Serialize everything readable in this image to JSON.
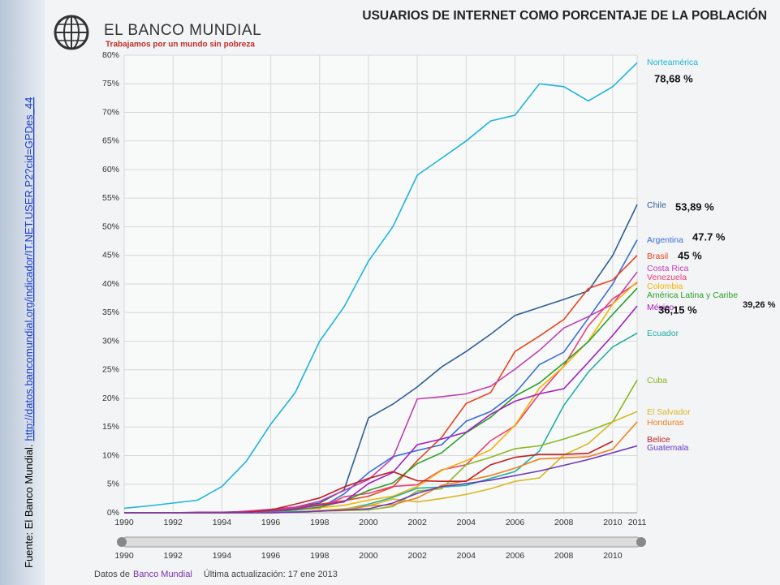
{
  "logo": {
    "name": "EL BANCO MUNDIAL",
    "tagline": "Trabajamos por un mundo sin pobreza"
  },
  "source": {
    "prefix": "Fuente: El Banco Mundial.",
    "url": "http://datos.bancomundial.org/indicador/IT.NET.USER.P2?cid=GPDes_44"
  },
  "footer": {
    "prefix": "Datos de",
    "brand": "Banco Mundial",
    "updated": "Última actualización: 17 ene 2013"
  },
  "chart_data": {
    "type": "line",
    "title": "USUARIOS DE INTERNET COMO PORCENTAJE DE LA POBLACIÓN",
    "x": [
      1990,
      1991,
      1992,
      1993,
      1994,
      1995,
      1996,
      1997,
      1998,
      1999,
      2000,
      2001,
      2002,
      2003,
      2004,
      2005,
      2006,
      2007,
      2008,
      2009,
      2010,
      2011
    ],
    "xlim": [
      1990,
      2011
    ],
    "xticks": [
      1990,
      1992,
      1994,
      1996,
      1998,
      2000,
      2002,
      2004,
      2006,
      2008,
      2010,
      2011
    ],
    "ylim": [
      0,
      80
    ],
    "yticks": [
      {
        "value": 0,
        "label": "0%"
      },
      {
        "value": 5,
        "label": "5%"
      },
      {
        "value": 10,
        "label": "10%"
      },
      {
        "value": 15,
        "label": "15%"
      },
      {
        "value": 20,
        "label": "20%"
      },
      {
        "value": 25,
        "label": "25%"
      },
      {
        "value": 30,
        "label": "30%"
      },
      {
        "value": 35,
        "label": "35%"
      },
      {
        "value": 40,
        "label": "40%"
      },
      {
        "value": 45,
        "label": "45%"
      },
      {
        "value": 50,
        "label": "50%"
      },
      {
        "value": 55,
        "label": "55%"
      },
      {
        "value": 60,
        "label": "60%"
      },
      {
        "value": 65,
        "label": "65%"
      },
      {
        "value": 70,
        "label": "70%"
      },
      {
        "value": 75,
        "label": "75%"
      },
      {
        "value": 80,
        "label": "80%"
      }
    ],
    "grid": true,
    "series": [
      {
        "name": "Norteamérica",
        "color": "#1fb5d9",
        "values": [
          0.8,
          1.2,
          1.7,
          2.2,
          4.6,
          9,
          15.5,
          21,
          30,
          36,
          44,
          50,
          59,
          62,
          65,
          68.5,
          69.5,
          75,
          74.5,
          72,
          74.5,
          78.68
        ]
      },
      {
        "name": "Chile",
        "color": "#2e5f95",
        "values": [
          0,
          0,
          0,
          0,
          0.1,
          0.2,
          0.6,
          1,
          1.7,
          4,
          16.6,
          19,
          22,
          25.5,
          28.2,
          31.2,
          34.5,
          35.9,
          37.3,
          38.8,
          45,
          53.89
        ]
      },
      {
        "name": "Argentina",
        "color": "#3a6fd8",
        "values": [
          0,
          0,
          0,
          0,
          0,
          0.1,
          0.3,
          0.6,
          0.8,
          3.3,
          7,
          9.8,
          10.9,
          11.9,
          16,
          17.7,
          20.9,
          25.9,
          28.1,
          34,
          40,
          47.7
        ]
      },
      {
        "name": "Brasil",
        "color": "#e8431e",
        "values": [
          0,
          0,
          0,
          0,
          0,
          0.1,
          0.4,
          0.8,
          1.5,
          2.1,
          2.9,
          4.5,
          9.1,
          13.2,
          19.1,
          21,
          28.2,
          30.9,
          33.8,
          39.2,
          40.7,
          45
        ]
      },
      {
        "name": "Costa Rica",
        "color": "#c040b0",
        "values": [
          0,
          0,
          0,
          0,
          0,
          0.3,
          0.6,
          1,
          2,
          3.9,
          5.8,
          9.6,
          19.9,
          20.3,
          20.8,
          22.1,
          25.1,
          28.4,
          32.3,
          34.3,
          36.5,
          42.1
        ]
      },
      {
        "name": "Venezuela",
        "color": "#e8407a",
        "values": [
          0,
          0,
          0,
          0,
          0,
          0.1,
          0.2,
          0.5,
          0.8,
          2.8,
          3.4,
          4.6,
          4.9,
          7.5,
          8.4,
          12.6,
          15.2,
          20.8,
          25.7,
          32.7,
          37.4,
          40.2
        ]
      },
      {
        "name": "Colombia",
        "color": "#f5b400",
        "values": [
          0,
          0,
          0,
          0,
          0,
          0.1,
          0.2,
          0.5,
          0.9,
          1.3,
          2.2,
          2.9,
          4.6,
          7.4,
          9.1,
          11,
          15.3,
          21.8,
          25.6,
          30,
          36.5,
          40.4
        ]
      },
      {
        "name": "América Latina y Caribe",
        "color": "#2aa02a",
        "values": [
          0,
          0,
          0,
          0,
          0,
          0.1,
          0.2,
          0.5,
          1,
          2,
          3.9,
          5.2,
          8.6,
          10.5,
          14,
          16.7,
          20.4,
          22.7,
          26.2,
          29.9,
          34.7,
          39.26
        ]
      },
      {
        "name": "México",
        "color": "#a020c0",
        "values": [
          0,
          0,
          0,
          0.1,
          0.1,
          0.1,
          0.2,
          0.7,
          1.3,
          1.9,
          5.1,
          7.04,
          11.9,
          12.9,
          14.1,
          17.2,
          19.5,
          20.8,
          21.7,
          26.3,
          31,
          36.15
        ]
      },
      {
        "name": "Ecuador",
        "color": "#20b0a0",
        "values": [
          0,
          0,
          0,
          0,
          0,
          0,
          0.1,
          0.2,
          0.3,
          0.6,
          1.5,
          2.7,
          4.3,
          4.5,
          4.8,
          6,
          7.2,
          10.8,
          18.8,
          24.6,
          29,
          31.4
        ]
      },
      {
        "name": "Cuba",
        "color": "#8ab820",
        "values": [
          0,
          0,
          0,
          0,
          0,
          0,
          0,
          0.1,
          0.3,
          0.4,
          0.5,
          1.1,
          3.8,
          4.2,
          8.4,
          9.7,
          11.2,
          11.7,
          12.9,
          14.3,
          15.9,
          23.2
        ]
      },
      {
        "name": "El Salvador",
        "color": "#d8b820",
        "values": [
          0,
          0,
          0,
          0,
          0,
          0,
          0,
          0.1,
          0.4,
          0.7,
          1.2,
          2.4,
          1.9,
          2.5,
          3.2,
          4.2,
          5.5,
          6.1,
          10.1,
          12.1,
          15.9,
          17.7
        ]
      },
      {
        "name": "Honduras",
        "color": "#f08020",
        "values": [
          0,
          0,
          0,
          0,
          0,
          0,
          0,
          0.1,
          0.3,
          0.4,
          1.2,
          1.4,
          2.6,
          4.8,
          5.6,
          6.5,
          7.8,
          9.4,
          9.6,
          9.8,
          11.1,
          15.9
        ]
      },
      {
        "name": "Belice",
        "color": "#c02020",
        "values": [
          0,
          0,
          0,
          0,
          0,
          0.1,
          0.5,
          1.5,
          2.6,
          4.5,
          6,
          7.2,
          5.6,
          5.5,
          5.5,
          8.4,
          9.7,
          10.2,
          10.2,
          10.4,
          12.5,
          null
        ]
      },
      {
        "name": "Guatemala",
        "color": "#6a3ac0",
        "values": [
          0,
          0,
          0,
          0,
          0,
          0,
          0,
          0.1,
          0.3,
          0.5,
          0.7,
          1.7,
          3.4,
          4.6,
          5.1,
          5.7,
          6.5,
          7.3,
          8.3,
          9.3,
          10.5,
          11.7
        ]
      }
    ],
    "annotations": [
      "78,68 %",
      "53,89 %",
      "47.7 %",
      "45 %",
      "39,26 %",
      "36,15 %"
    ]
  }
}
